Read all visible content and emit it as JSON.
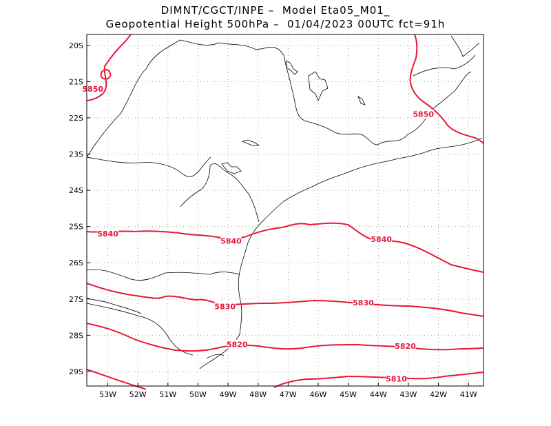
{
  "title": {
    "line1": "DIMNT/CGCT/INPE –  Model Eta05_M01_",
    "line2": "Geopotential Height 500hPa –  01/04/2023 00UTC fct=91h"
  },
  "colors": {
    "contour": "#e8173a",
    "coast": "#000000",
    "grid": "#a0a0a0"
  },
  "chart_data": {
    "type": "map",
    "field": "Geopotential Height 500hPa",
    "lon_range": [
      -53.7,
      -40.5
    ],
    "lat_range": [
      -29.4,
      -19.7
    ],
    "lon_ticks": [
      "53W",
      "52W",
      "51W",
      "50W",
      "49W",
      "48W",
      "47W",
      "46W",
      "45W",
      "44W",
      "43W",
      "42W",
      "41W"
    ],
    "lat_ticks": [
      "20S",
      "21S",
      "22S",
      "23S",
      "24S",
      "25S",
      "26S",
      "27S",
      "28S",
      "29S"
    ],
    "grid": true,
    "contour_labels": [
      {
        "text": "5850",
        "lon": -53.5,
        "lat": -21.2
      },
      {
        "text": "5850",
        "lon": -42.5,
        "lat": -21.9
      },
      {
        "text": "5840",
        "lon": -53.0,
        "lat": -25.2
      },
      {
        "text": "5840",
        "lon": -48.9,
        "lat": -25.4
      },
      {
        "text": "5840",
        "lon": -43.9,
        "lat": -25.35
      },
      {
        "text": "5830",
        "lon": -49.1,
        "lat": -27.2
      },
      {
        "text": "5830",
        "lon": -44.5,
        "lat": -27.1
      },
      {
        "text": "5820",
        "lon": -48.7,
        "lat": -28.25
      },
      {
        "text": "5820",
        "lon": -43.1,
        "lat": -28.3
      },
      {
        "text": "5810",
        "lon": -43.4,
        "lat": -29.2
      }
    ]
  }
}
